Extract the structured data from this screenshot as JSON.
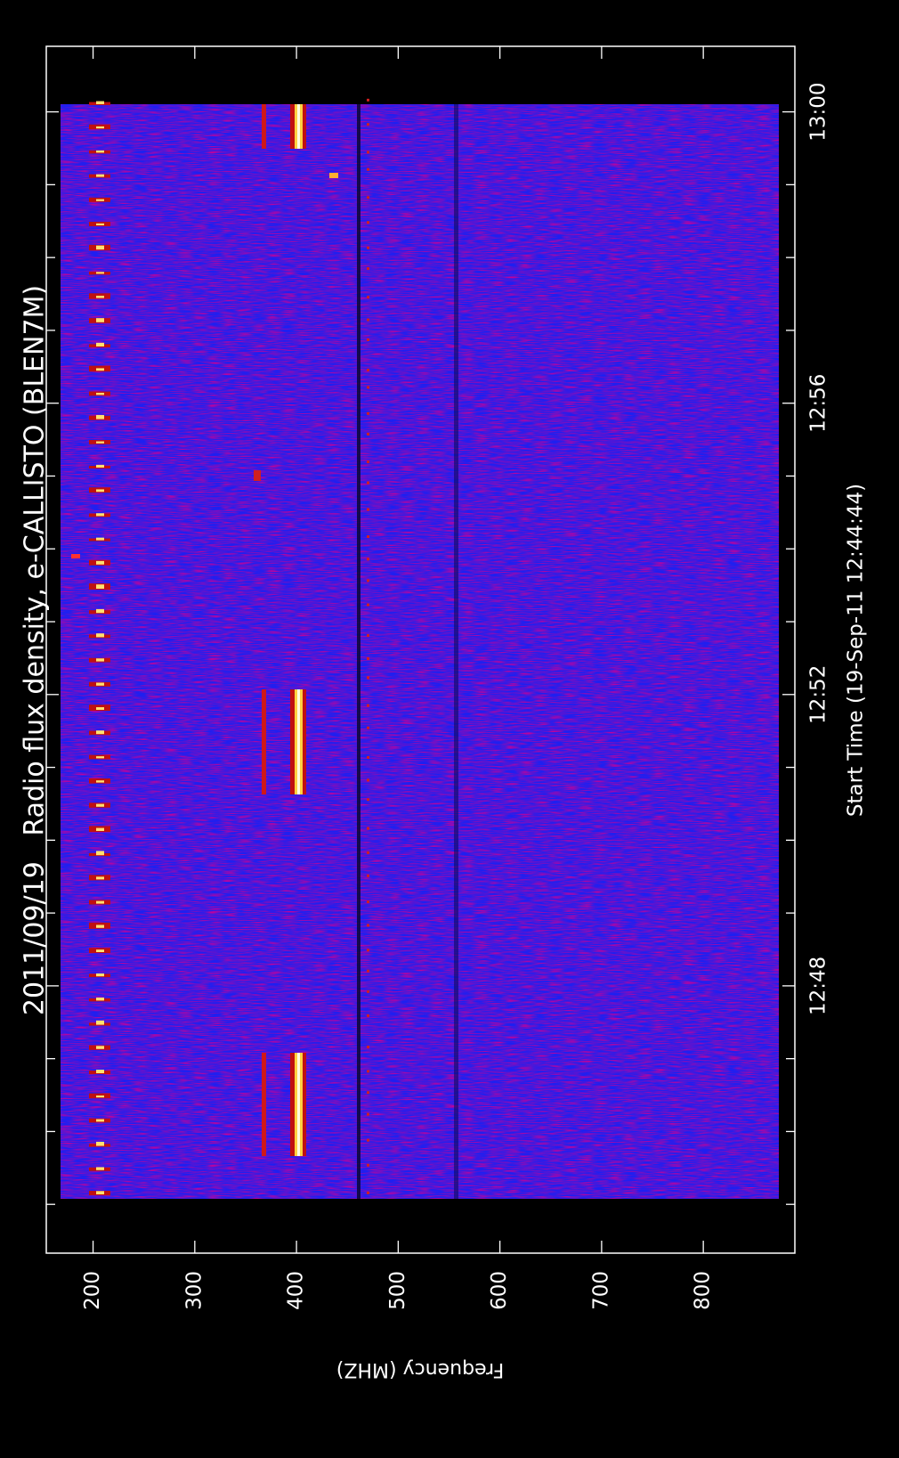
{
  "chart_data": {
    "type": "spectrogram",
    "title": "2011/09/19   Radio flux density, e-CALLISTO (BLEN7M)",
    "xlabel": "Start Time (19-Sep-11 12:44:44)",
    "ylabel": "Frequency (MHZ)",
    "xlim": [
      764.33,
      780.9
    ],
    "xticks": [
      {
        "value": 768,
        "label": "12:48"
      },
      {
        "value": 772,
        "label": "12:52"
      },
      {
        "value": 776,
        "label": "12:56"
      },
      {
        "value": 780,
        "label": "13:00"
      }
    ],
    "xminorticks": [
      765,
      766,
      767,
      769,
      770,
      771,
      773,
      774,
      775,
      777,
      778,
      779
    ],
    "ylim": [
      154,
      890
    ],
    "yticks": [
      200,
      300,
      400,
      500,
      600,
      700,
      800
    ],
    "yinverted": true,
    "color": "#1f1ff0"
  }
}
